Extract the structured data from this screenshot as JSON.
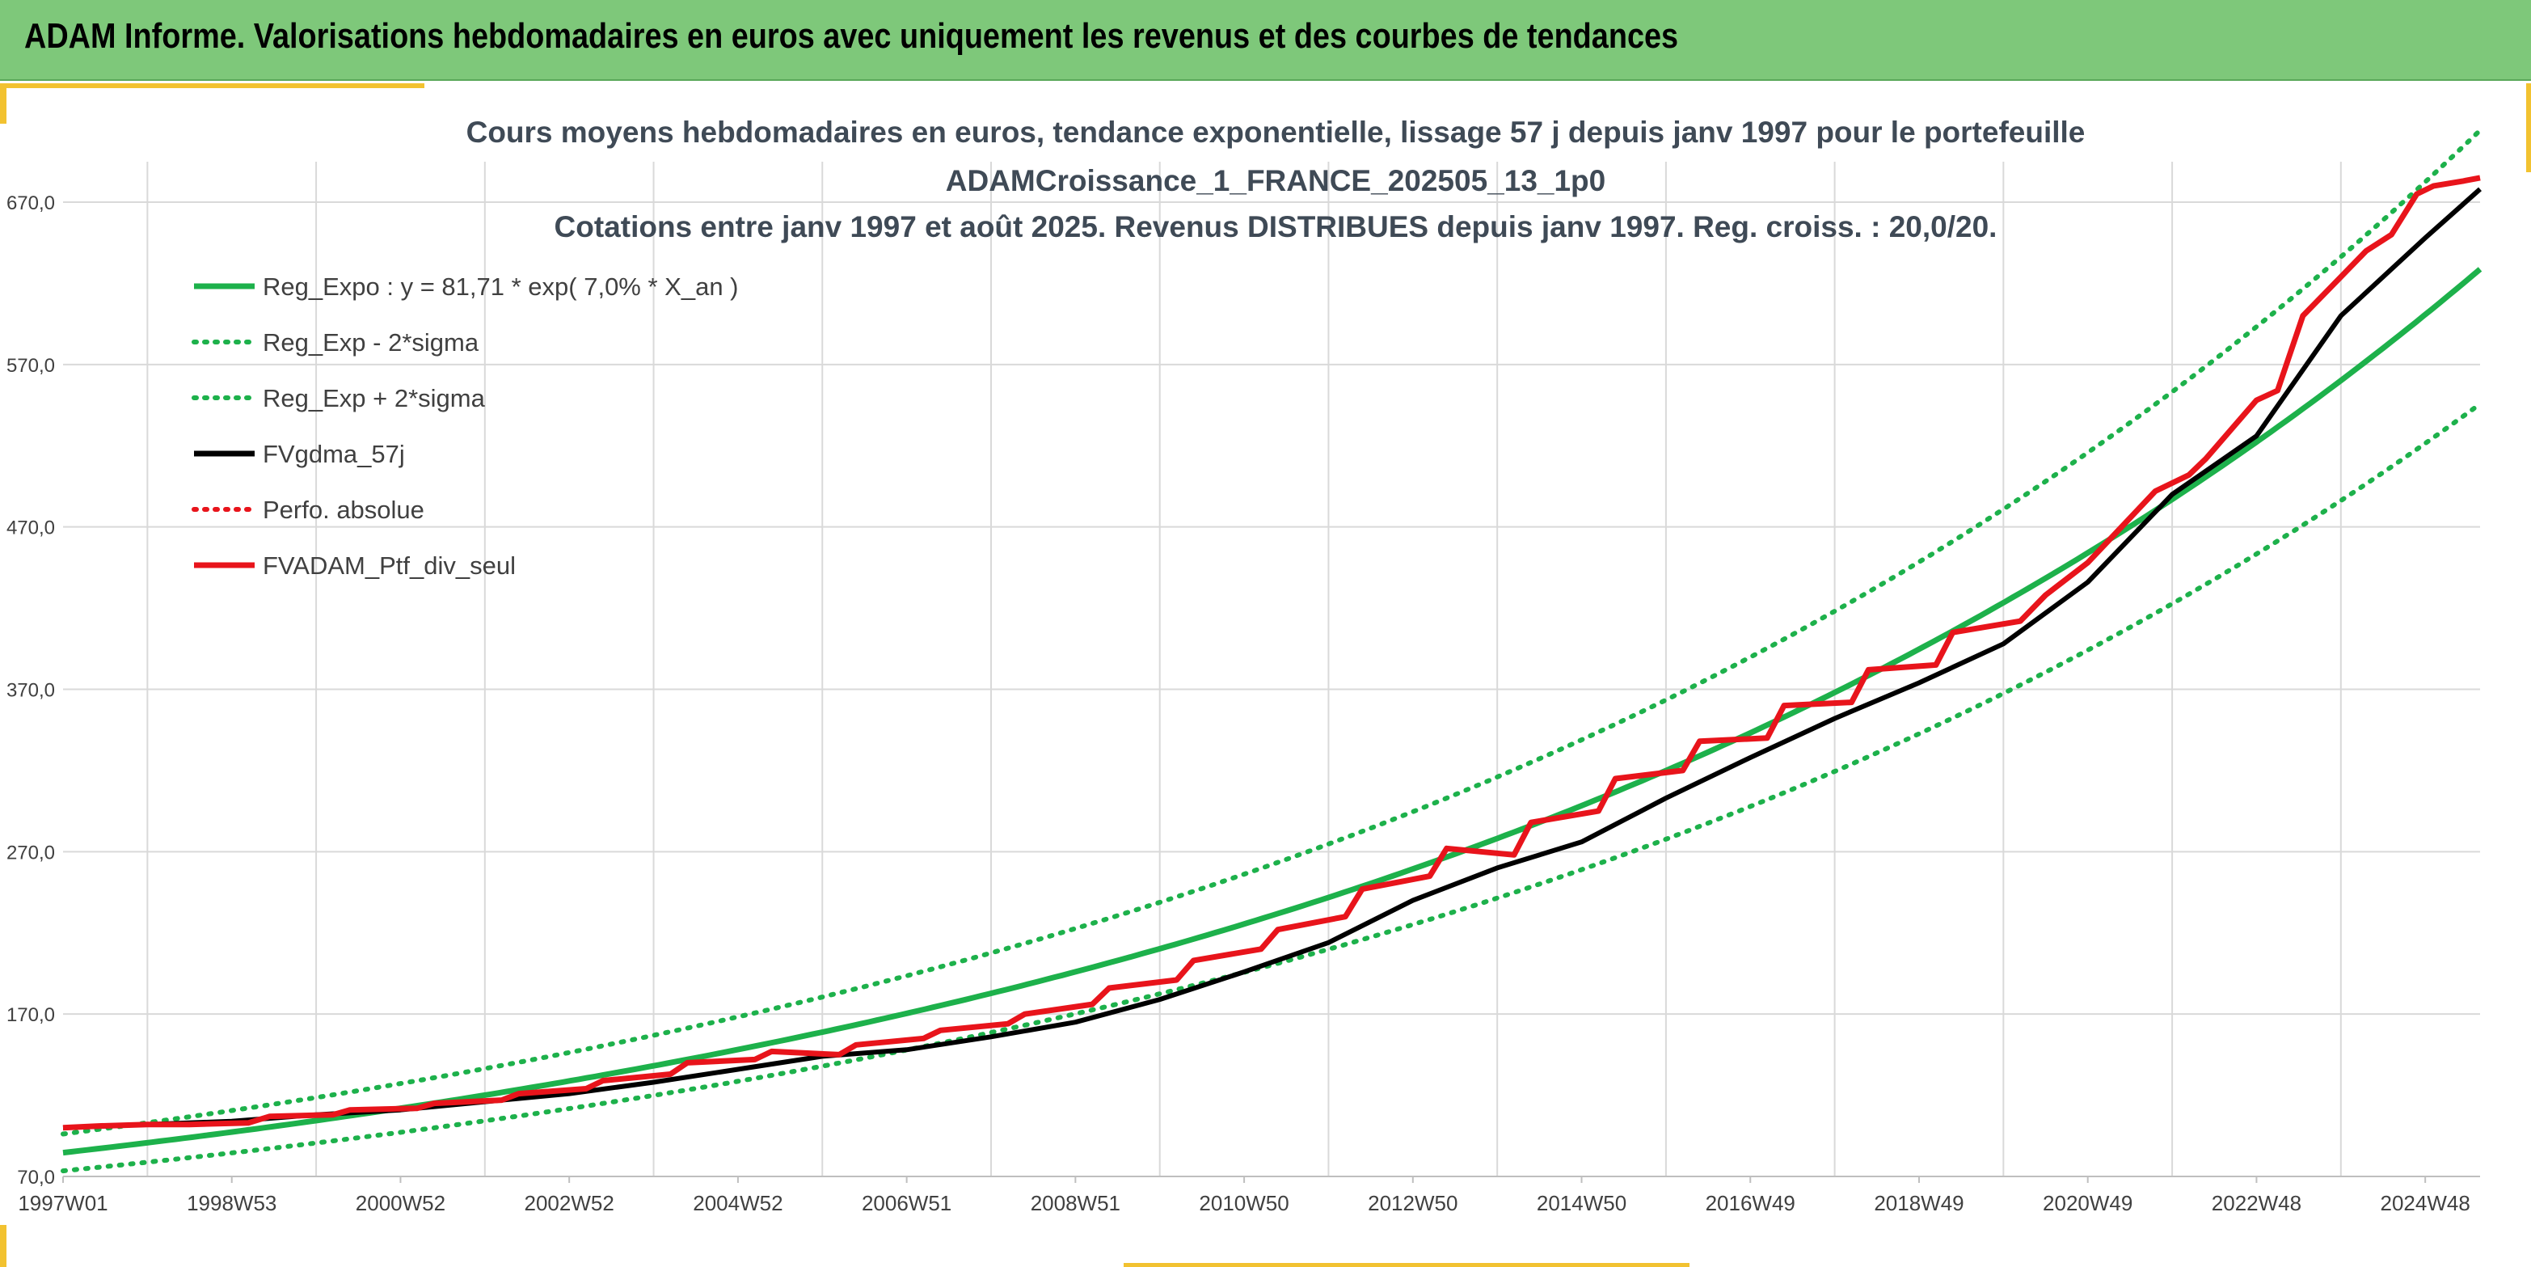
{
  "header": {
    "title": "ADAM Informe. Valorisations hebdomadaires en euros avec uniquement les revenus et des courbes de tendances"
  },
  "colors": {
    "header_bg": "#7ec87a",
    "accent": "#f2c230",
    "trend": "#1db14b",
    "smooth": "#000000",
    "portfolio": "#e8141b"
  },
  "chart_data": {
    "type": "line",
    "title_lines": [
      "Cours moyens hebdomadaires en euros, tendance exponentielle, lissage 57 j depuis janv 1997 pour le portefeuille",
      "ADAMCroissance_1_FRANCE_202505_13_1p0",
      "Cotations entre janv 1997 et août 2025. Revenus DISTRIBUES depuis janv 1997. Reg. croiss. : 20,0/20."
    ],
    "x_tick_labels": [
      "1997W01",
      "1998W53",
      "2000W52",
      "2002W52",
      "2004W52",
      "2006W51",
      "2008W51",
      "2010W50",
      "2012W50",
      "2014W50",
      "2016W49",
      "2018W49",
      "2020W49",
      "2022W48",
      "2024W48"
    ],
    "x_tick_years": [
      1997.0,
      1999.0,
      2001.0,
      2003.0,
      2005.0,
      2007.0,
      2009.0,
      2011.0,
      2013.0,
      2015.0,
      2017.0,
      2019.0,
      2021.0,
      2023.0,
      2025.0
    ],
    "x_range": [
      1997.0,
      2025.65
    ],
    "y_ticks": [
      "70,0",
      "170,0",
      "270,0",
      "370,0",
      "470,0",
      "570,0",
      "670,0"
    ],
    "y_tick_values": [
      70,
      170,
      270,
      370,
      470,
      570,
      670
    ],
    "ylim": [
      70,
      700
    ],
    "grid": true,
    "legend_position": "top-left",
    "legend": [
      {
        "label": "Reg_Expo : y = 81,71 * exp( 7,0% *  X_an )",
        "style": "solid",
        "color": "#1db14b"
      },
      {
        "label": "Reg_Exp - 2*sigma",
        "style": "dotted",
        "color": "#1db14b"
      },
      {
        "label": "Reg_Exp + 2*sigma",
        "style": "dotted",
        "color": "#1db14b"
      },
      {
        "label": "FVgdma_57j",
        "style": "solid",
        "color": "#000000"
      },
      {
        "label": "Perfo. absolue",
        "style": "dotted",
        "color": "#e8141b"
      },
      {
        "label": "FVADAM_Ptf_div_seul",
        "style": "solid",
        "color": "#e8141b"
      }
    ],
    "regression": {
      "a": 81.71,
      "rate": 0.07,
      "minus_2sigma_factor": 0.868,
      "plus_2sigma_factor": 1.136
    },
    "series": [
      {
        "name": "FVADAM_Ptf_div_seul",
        "x": [
          1997.0,
          1997.4,
          1998.0,
          1998.5,
          1999.2,
          1999.45,
          2000.2,
          2000.4,
          2001.2,
          2001.4,
          2002.2,
          2002.4,
          2003.2,
          2003.4,
          2004.2,
          2004.4,
          2005.2,
          2005.4,
          2006.2,
          2006.4,
          2007.2,
          2007.4,
          2008.2,
          2008.4,
          2009.2,
          2009.4,
          2010.2,
          2010.4,
          2011.2,
          2011.4,
          2012.2,
          2012.4,
          2013.2,
          2013.4,
          2014.2,
          2014.4,
          2015.2,
          2015.4,
          2016.2,
          2016.4,
          2017.2,
          2017.4,
          2018.2,
          2018.4,
          2019.2,
          2019.4,
          2020.2,
          2020.5,
          2021.0,
          2021.4,
          2021.8,
          2022.2,
          2022.4,
          2023.0,
          2023.25,
          2023.55,
          2024.0,
          2024.3,
          2024.6,
          2024.9,
          2025.1,
          2025.45,
          2025.65
        ],
        "y": [
          100,
          101,
          102,
          102,
          103,
          107,
          108,
          111,
          112,
          115,
          117,
          121,
          124,
          129,
          133,
          140,
          142,
          147,
          145,
          151,
          155,
          160,
          164,
          170,
          176,
          186,
          191,
          203,
          210,
          222,
          230,
          247,
          255,
          272,
          268,
          288,
          295,
          315,
          320,
          338,
          340,
          360,
          362,
          382,
          385,
          405,
          412,
          428,
          448,
          470,
          492,
          502,
          512,
          548,
          554,
          600,
          624,
          640,
          650,
          675,
          680,
          683,
          685
        ]
      },
      {
        "name": "FVgdma_57j",
        "x": [
          1997.0,
          1998.0,
          1999.0,
          2000.0,
          2001.0,
          2002.0,
          2003.0,
          2004.0,
          2005.0,
          2006.0,
          2007.0,
          2008.0,
          2009.0,
          2010.0,
          2011.0,
          2012.0,
          2013.0,
          2014.0,
          2015.0,
          2016.0,
          2017.0,
          2018.0,
          2019.0,
          2020.0,
          2021.0,
          2022.0,
          2023.0,
          2024.0,
          2025.0,
          2025.65
        ],
        "y": [
          100,
          102,
          104,
          108,
          111,
          116,
          121,
          128,
          136,
          144,
          148,
          156,
          165,
          179,
          196,
          214,
          240,
          260,
          276,
          303,
          328,
          352,
          374,
          398,
          436,
          490,
          526,
          600,
          648,
          678
        ]
      }
    ]
  }
}
